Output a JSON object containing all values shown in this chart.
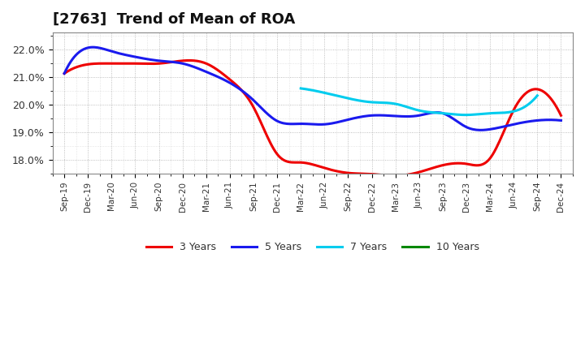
{
  "title": "[2763]  Trend of Mean of ROA",
  "ylim": [
    0.175,
    0.226
  ],
  "yticks": [
    0.18,
    0.19,
    0.2,
    0.21,
    0.22
  ],
  "ytick_labels": [
    "18.0%",
    "19.0%",
    "20.0%",
    "21.0%",
    "22.0%"
  ],
  "x_labels": [
    "Sep-19",
    "Dec-19",
    "Mar-20",
    "Jun-20",
    "Sep-20",
    "Dec-20",
    "Mar-21",
    "Jun-21",
    "Sep-21",
    "Dec-21",
    "Mar-22",
    "Jun-22",
    "Sep-22",
    "Dec-22",
    "Mar-23",
    "Jun-23",
    "Sep-23",
    "Dec-23",
    "Mar-24",
    "Jun-24",
    "Sep-24",
    "Dec-24"
  ],
  "series_3y": [
    0.2112,
    0.2145,
    0.2148,
    0.2148,
    0.2148,
    0.2158,
    0.2148,
    0.209,
    0.199,
    0.182,
    0.179,
    0.177,
    0.1752,
    0.1748,
    0.1742,
    0.1755,
    0.178,
    0.1785,
    0.1805,
    0.198,
    0.2055,
    0.196
  ],
  "series_5y": [
    0.2112,
    0.2205,
    0.2192,
    0.2172,
    0.2158,
    0.2148,
    0.2118,
    0.2078,
    0.2015,
    0.194,
    0.193,
    0.1928,
    0.1945,
    0.196,
    0.1958,
    0.196,
    0.1968,
    0.1918,
    0.191,
    0.1928,
    0.1942,
    0.1942
  ],
  "series_7y": [
    null,
    null,
    null,
    null,
    null,
    null,
    null,
    null,
    null,
    null,
    0.2058,
    0.2042,
    0.2022,
    0.2008,
    0.2002,
    0.1978,
    0.1968,
    0.1962,
    0.1968,
    0.1975,
    0.2032,
    null
  ],
  "series_10y": [
    null,
    null,
    null,
    null,
    null,
    null,
    null,
    null,
    null,
    null,
    null,
    null,
    null,
    null,
    null,
    null,
    null,
    null,
    null,
    null,
    null,
    null
  ],
  "color_3y": "#ee0000",
  "color_5y": "#1a1aee",
  "color_7y": "#00ccee",
  "color_10y": "#008800",
  "legend_labels": [
    "3 Years",
    "5 Years",
    "7 Years",
    "10 Years"
  ],
  "background_color": "#ffffff",
  "grid_color": "#999999",
  "title_fontsize": 13,
  "linewidth": 2.2,
  "smooth_points": 300
}
